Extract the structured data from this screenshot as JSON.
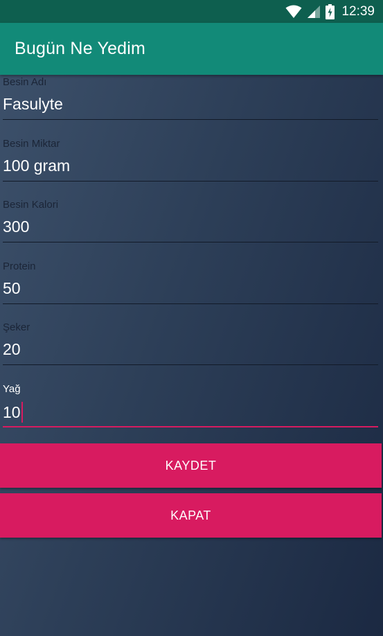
{
  "status_bar": {
    "time": "12:39",
    "icons": [
      "wifi-icon",
      "signal-icon",
      "battery-charging-icon"
    ]
  },
  "app_bar": {
    "title": "Bugün Ne Yedim",
    "color": "#128a78"
  },
  "form": {
    "fields": [
      {
        "label": "Besin Adı",
        "value": "Fasulyte"
      },
      {
        "label": "Besin Miktar",
        "value": "100 gram"
      },
      {
        "label": "Besin Kalori",
        "value": "300"
      },
      {
        "label": "Protein",
        "value": "50"
      },
      {
        "label": "Şeker",
        "value": "20"
      },
      {
        "label": "Yağ",
        "value": "10"
      }
    ]
  },
  "buttons": {
    "save_label": "KAYDET",
    "close_label": "KAPAT",
    "accent_color": "#d81b60"
  }
}
